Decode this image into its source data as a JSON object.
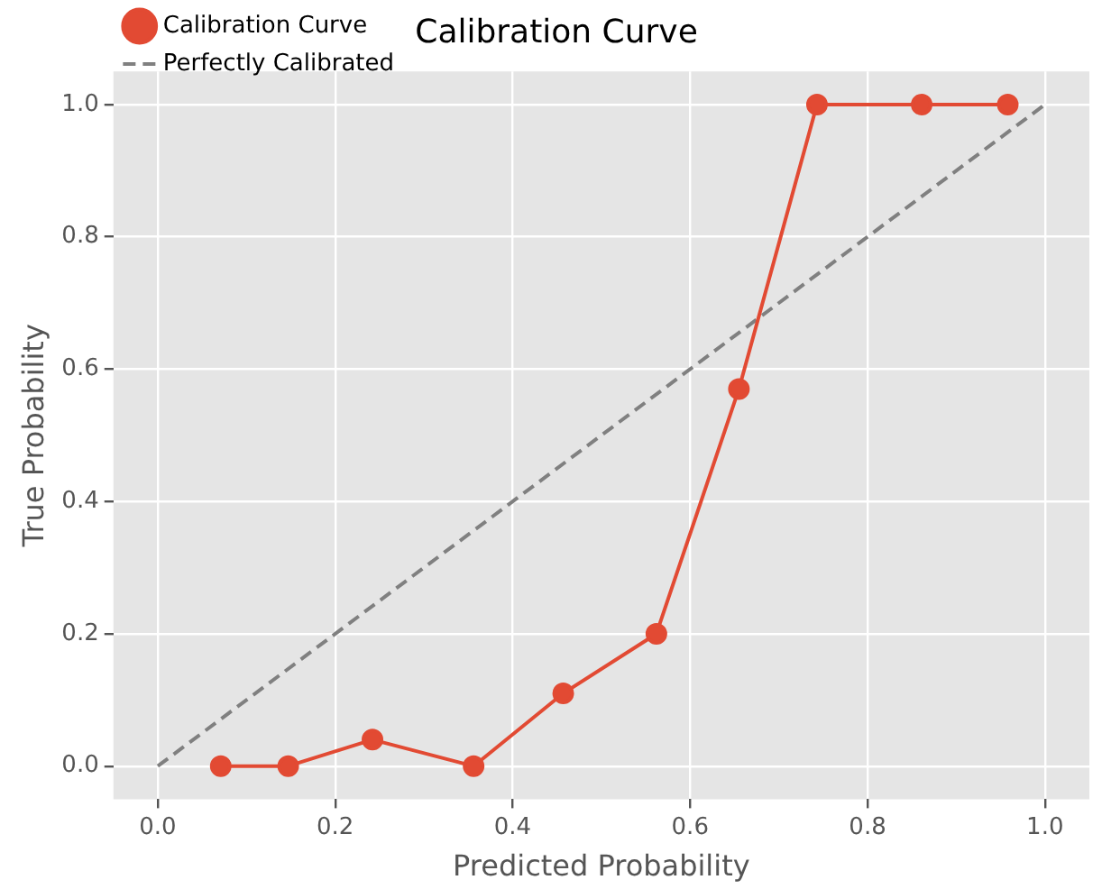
{
  "chart_data": {
    "type": "line",
    "title": "Calibration Curve",
    "xlabel": "Predicted Probability",
    "ylabel": "True Probability",
    "series": [
      {
        "name": "Calibration Curve",
        "color": "#e24a33",
        "x": [
          0.071,
          0.147,
          0.242,
          0.356,
          0.457,
          0.562,
          0.655,
          0.743,
          0.861,
          0.958
        ],
        "values": [
          0,
          0,
          0.04,
          0,
          0.11,
          0.2,
          0.57,
          1,
          1,
          1
        ],
        "marker": "circle",
        "line_style": "solid"
      },
      {
        "name": "Perfectly Calibrated",
        "color": "#808080",
        "x": [
          0,
          1
        ],
        "values": [
          0,
          1
        ],
        "marker": "none",
        "line_style": "dashed"
      }
    ],
    "xlim": [
      -0.05,
      1.05
    ],
    "ylim": [
      -0.05,
      1.05
    ],
    "xticks": [
      {
        "value": 0,
        "label": "0.0"
      },
      {
        "value": 0.2,
        "label": "0.2"
      },
      {
        "value": 0.4,
        "label": "0.4"
      },
      {
        "value": 0.6,
        "label": "0.6"
      },
      {
        "value": 0.8,
        "label": "0.8"
      },
      {
        "value": 1,
        "label": "1.0"
      }
    ],
    "yticks": [
      {
        "value": 0,
        "label": "0.0"
      },
      {
        "value": 0.2,
        "label": "0.2"
      },
      {
        "value": 0.4,
        "label": "0.4"
      },
      {
        "value": 0.6,
        "label": "0.6"
      },
      {
        "value": 0.8,
        "label": "0.8"
      },
      {
        "value": 1,
        "label": "1.0"
      }
    ],
    "grid": true,
    "legend": "top left"
  }
}
